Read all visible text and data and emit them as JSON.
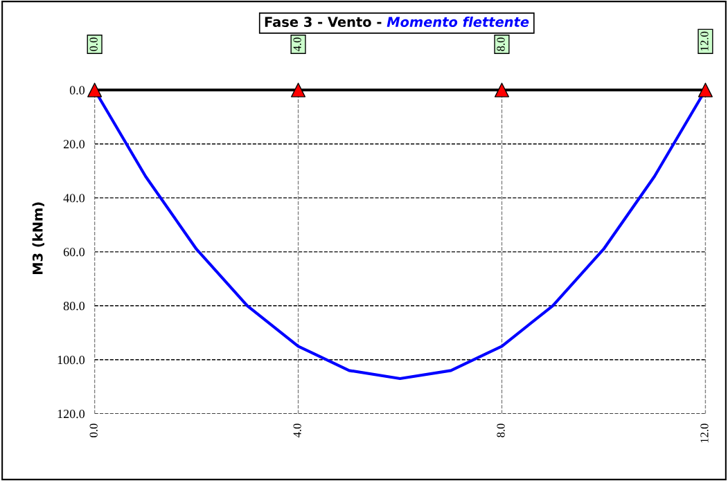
{
  "chart_data": {
    "type": "line",
    "title": "Fase 3 - Vento -",
    "subtitle": "Momento flettente",
    "ylabel": "M3 (kNm)",
    "xlim": [
      0,
      12
    ],
    "ylim": [
      120,
      -10
    ],
    "xticks": [
      {
        "value": 0,
        "label": "0.0"
      },
      {
        "value": 4,
        "label": "4.0"
      },
      {
        "value": 8,
        "label": "8.0"
      },
      {
        "value": 12,
        "label": "12.0"
      }
    ],
    "x2lim": [
      0,
      12
    ],
    "x2ticks": [
      {
        "value": 0,
        "label": "0.0"
      },
      {
        "value": 4,
        "label": "4.0"
      },
      {
        "value": 8,
        "label": "8.0"
      },
      {
        "value": 12,
        "label": "12.0"
      }
    ],
    "yticks": [
      {
        "value": 0,
        "label": "0.0"
      },
      {
        "value": 20,
        "label": "20.0"
      },
      {
        "value": 40,
        "label": "40.0"
      },
      {
        "value": 60,
        "label": "60.0"
      },
      {
        "value": 80,
        "label": "80.0"
      },
      {
        "value": 100,
        "label": "100.0"
      },
      {
        "value": 120,
        "label": "120.0"
      }
    ],
    "grid": true,
    "legend": false,
    "ref_lines": [
      {
        "axis": "y",
        "value": 0,
        "label": null,
        "color": "#000000",
        "line_style": "solid"
      }
    ],
    "series": [
      {
        "color": "#0000ff",
        "marker": "none",
        "line_style": "solid",
        "x": [
          0,
          1,
          2,
          3,
          4,
          5,
          6,
          7,
          8,
          9,
          10,
          11,
          12
        ],
        "values": [
          0,
          32,
          59,
          80,
          95,
          104,
          107,
          104,
          95,
          80,
          59,
          32,
          0
        ]
      },
      {
        "type": "scatter",
        "color": "#ff0000",
        "marker": "triangle",
        "x": [
          0,
          4,
          8,
          12
        ],
        "values": [
          0,
          0,
          0,
          0
        ]
      }
    ]
  }
}
